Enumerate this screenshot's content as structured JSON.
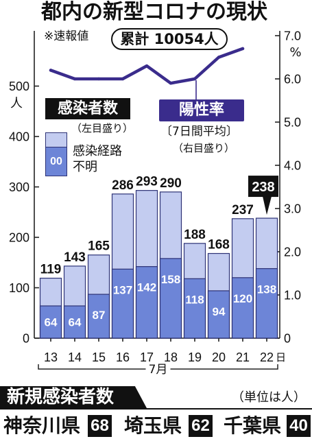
{
  "title": "都内の新型コロナの現状",
  "note": "※速報値",
  "cumulative": "累計 10054人",
  "legend": {
    "left_scale": "（左目盛り）",
    "swatch_text": "00",
    "rate_average": "〔7日間平均〕",
    "right_scale": "（右目盛り）"
  },
  "chart_data": {
    "type": "bar",
    "categories": [
      "13",
      "14",
      "15",
      "16",
      "17",
      "18",
      "19",
      "20",
      "21",
      "22"
    ],
    "x_unit_label": "日",
    "x_group_label": "7月",
    "series": [
      {
        "name": "感染者数",
        "type": "bar",
        "y_axis": "left",
        "values": [
          119,
          143,
          165,
          286,
          293,
          290,
          188,
          168,
          237,
          238
        ]
      },
      {
        "name": "感染経路不明",
        "type": "bar",
        "y_axis": "left",
        "values": [
          64,
          64,
          87,
          137,
          142,
          158,
          118,
          94,
          120,
          138
        ]
      },
      {
        "name": "陽性率",
        "type": "line",
        "y_axis": "right",
        "values": [
          6.2,
          6.0,
          6.0,
          6.0,
          6.3,
          5.9,
          6.0,
          6.5,
          6.7,
          null
        ]
      }
    ],
    "left_axis": {
      "unit": "人",
      "ticks": [
        "0",
        "100",
        "200",
        "300",
        "400",
        "500"
      ],
      "ylim": [
        0,
        600
      ]
    },
    "right_axis": {
      "unit": "%",
      "ticks": [
        "0",
        "1.0",
        "2.0",
        "3.0",
        "4.0",
        "5.0",
        "6.0",
        "7.0"
      ],
      "ylim": [
        0,
        7
      ]
    },
    "grid": false,
    "legend_placement": "inside-top"
  },
  "colors": {
    "bar_total": "#c3ccf0",
    "bar_unknown_route": "#6d85d7",
    "bar_outline": "#2d3275",
    "rate_line": "#3a2c8c",
    "highlight": "#111111"
  },
  "regional": {
    "heading": "新規感染者数",
    "unit_note": "（単位は人）",
    "prefectures": [
      {
        "name": "神奈川県",
        "count": 68
      },
      {
        "name": "埼玉県",
        "count": 62
      },
      {
        "name": "千葉県",
        "count": 40
      }
    ]
  }
}
